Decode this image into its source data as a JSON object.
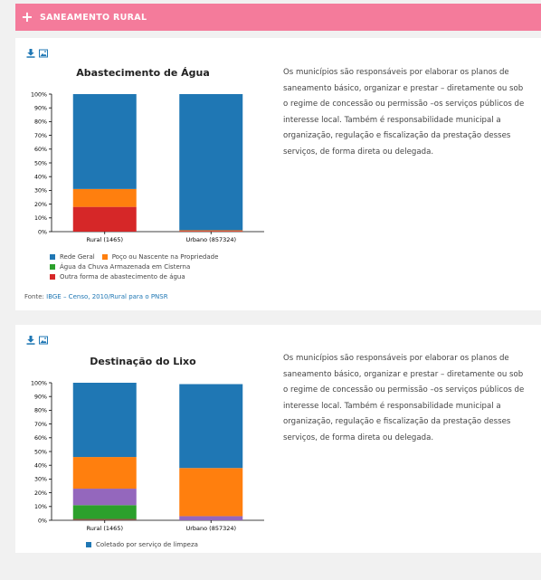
{
  "header": {
    "title": "SANEAMENTO RURAL"
  },
  "colors": {
    "header_bg": "#f47b9b",
    "blue": "#1f77b4",
    "orange": "#ff7f0e",
    "green": "#2ca02c",
    "red": "#d62728",
    "purple": "#9467bd",
    "brown": "#8c564b"
  },
  "cards": [
    {
      "tools": [
        "download-icon",
        "image-icon"
      ],
      "description": "Os municípios são responsáveis por elaborar os planos de saneamento básico, organizar e prestar – diretamente ou sob o regime de concessão ou permissão –os serviços públicos de interesse local. Também é responsabilidade municipal a organização, regulação e fiscalização da prestação desses serviços, de forma direta ou delegada.",
      "source": {
        "label": "Fonte:",
        "link": "IBGE – Censo, 2010/Rural para o PNSR"
      }
    },
    {
      "tools": [
        "download-icon",
        "image-icon"
      ],
      "description": "Os municípios são responsáveis por elaborar os planos de saneamento básico, organizar e prestar – diretamente ou sob o regime de concessão ou permissão –os serviços públicos de interesse local. Também é responsabilidade municipal a organização, regulação e fiscalização da prestação desses serviços, de forma direta ou delegada."
    }
  ],
  "chart_data": [
    {
      "type": "bar",
      "stacked": true,
      "title": "Abastecimento de Água",
      "categories": [
        "Rural (1465)",
        "Urbano (857324)"
      ],
      "yticks": [
        "0%",
        "10%",
        "20%",
        "30%",
        "40%",
        "50%",
        "60%",
        "70%",
        "80%",
        "90%",
        "100%"
      ],
      "ylim": [
        0,
        100
      ],
      "series": [
        {
          "name": "Outra forma de abastecimento de água",
          "color": "#d62728",
          "values": [
            18,
            0.5
          ]
        },
        {
          "name": "Água da Chuva Armazenada em Cisterna",
          "color": "#2ca02c",
          "values": [
            0,
            0
          ]
        },
        {
          "name": "Poço ou Nascente na Propriedade",
          "color": "#ff7f0e",
          "values": [
            13,
            0.5
          ]
        },
        {
          "name": "Rede Geral",
          "color": "#1f77b4",
          "values": [
            69,
            99
          ]
        }
      ],
      "legend_rows": [
        [
          3,
          2
        ],
        [
          1
        ],
        [
          0
        ]
      ],
      "legend_placement": "bottom"
    },
    {
      "type": "bar",
      "stacked": true,
      "title": "Destinação do Lixo",
      "categories": [
        "Rural (1465)",
        "Urbano (857324)"
      ],
      "yticks": [
        "0%",
        "10%",
        "20%",
        "30%",
        "40%",
        "50%",
        "60%",
        "70%",
        "80%",
        "90%",
        "100%"
      ],
      "ylim": [
        0,
        100
      ],
      "series": [
        {
          "color": "#8c564b",
          "values": [
            1,
            0
          ]
        },
        {
          "color": "#2ca02c",
          "values": [
            10,
            0
          ]
        },
        {
          "color": "#9467bd",
          "values": [
            12,
            3
          ]
        },
        {
          "color": "#ff7f0e",
          "values": [
            23,
            35
          ]
        },
        {
          "name": "Coletado por serviço de limpeza",
          "color": "#1f77b4",
          "values": [
            54,
            61
          ]
        }
      ],
      "legend_rows": [
        [
          4
        ]
      ],
      "legend_placement": "bottom"
    }
  ]
}
